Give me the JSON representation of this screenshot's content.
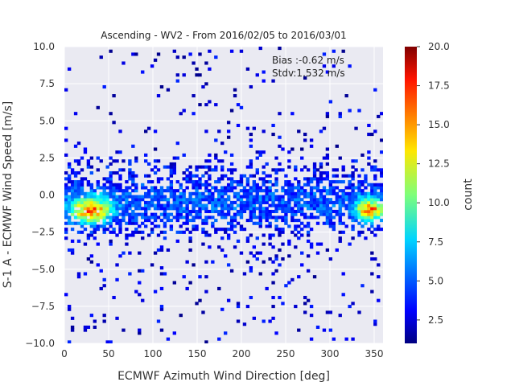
{
  "chart_data": {
    "type": "heatmap",
    "title": "Ascending - WV2 - From 2016/02/05 to 2016/03/01",
    "xlabel": "ECMWF Azimuth Wind Direction [deg]",
    "ylabel": "S-1 A - ECMWF Wind Speed [m/s]",
    "xlim": [
      0,
      360
    ],
    "ylim": [
      -10.0,
      10.0
    ],
    "x_ticks": [
      "0",
      "50",
      "100",
      "150",
      "200",
      "250",
      "300",
      "350"
    ],
    "y_ticks": [
      "−10.0",
      "−7.5",
      "−5.0",
      "−2.5",
      "0.0",
      "2.5",
      "5.0",
      "7.5",
      "10.0"
    ],
    "annotations": [
      "Bias :-0.62 m/s",
      "Stdv:1.532 m/s"
    ],
    "colorbar": {
      "label": "count",
      "colormap": "jet",
      "range": [
        1,
        20
      ],
      "ticks": [
        "2.5",
        "5.0",
        "7.5",
        "10.0",
        "12.5",
        "15.0",
        "17.5",
        "20.0"
      ]
    },
    "bins": {
      "x_width_deg": 3.6,
      "y_height_ms": 0.2
    },
    "density_peaks": [
      {
        "x": 30,
        "y": -1.0,
        "count": 16
      },
      {
        "x": 345,
        "y": -1.0,
        "count": 15
      }
    ],
    "grid": true,
    "background": "#eaeaf2"
  }
}
